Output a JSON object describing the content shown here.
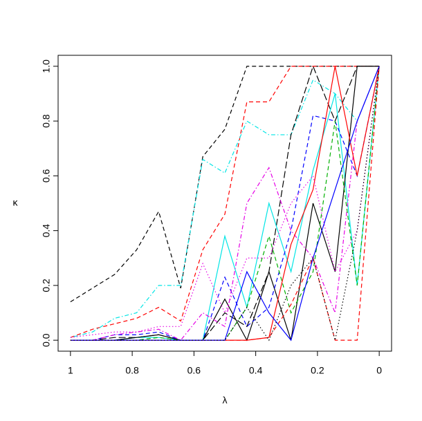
{
  "chart_data": {
    "type": "line",
    "x_label": "λ",
    "y_label": "κ",
    "x": [
      1,
      0.9286,
      0.8571,
      0.7857,
      0.7143,
      0.6429,
      0.5714,
      0.5,
      0.4286,
      0.3571,
      0.2857,
      0.2143,
      0.1429,
      0.0714,
      0
    ],
    "xlim": [
      1.04,
      -0.04
    ],
    "ylim": [
      -0.04,
      1.04
    ],
    "xticks": [
      1,
      0.8,
      0.6,
      0.4,
      0.2,
      0
    ],
    "yticks": [
      {
        "value": 0,
        "label": "0.0"
      },
      0.2,
      0.4,
      0.6,
      0.8,
      {
        "value": 1,
        "label": "1.0"
      }
    ],
    "series": [
      {
        "color": "#000000",
        "style": "dashed",
        "values": [
          0.14,
          0.19,
          0.24,
          0.33,
          0.47,
          0.19,
          0.67,
          0.77,
          1,
          1,
          1,
          1,
          1,
          1,
          1
        ]
      },
      {
        "color": "#ff0000",
        "style": "dashed",
        "values": [
          0.01,
          0.04,
          0.06,
          0.08,
          0.12,
          0.07,
          0.33,
          0.46,
          0.87,
          0.87,
          1,
          1,
          1,
          1,
          1
        ]
      },
      {
        "color": "#00e5e5",
        "style": "dotdash",
        "values": [
          0.01,
          0.03,
          0.08,
          0.1,
          0.2,
          0.2,
          0.66,
          0.61,
          0.8,
          0.75,
          0.75,
          0.95,
          0.9,
          0.8,
          1
        ]
      },
      {
        "color": "#000000",
        "style": "longdash",
        "values": [
          0,
          0,
          0.01,
          0.01,
          0.02,
          0,
          0,
          0.1,
          0.05,
          0.25,
          0.75,
          1,
          0.8,
          1,
          1
        ]
      },
      {
        "color": "#00e5e5",
        "style": "solid",
        "values": [
          0,
          0,
          0,
          0.01,
          0.01,
          0,
          0,
          0.38,
          0.12,
          0.5,
          0.25,
          0.62,
          0.9,
          0.2,
          1
        ]
      },
      {
        "color": "#000000",
        "style": "solid",
        "values": [
          0,
          0,
          0,
          0.01,
          0.02,
          0,
          0,
          0.15,
          0,
          0.25,
          0,
          0.5,
          0.25,
          1,
          1
        ]
      },
      {
        "color": "#0000ff",
        "style": "dashed",
        "values": [
          0,
          0,
          0.02,
          0.02,
          0.03,
          0,
          0,
          0.23,
          0.05,
          0.12,
          0.4,
          0.82,
          0.8,
          0.6,
          1
        ]
      },
      {
        "color": "#e500e5",
        "style": "dotdash",
        "values": [
          0,
          0,
          0.02,
          0.03,
          0.04,
          0,
          0.1,
          0.05,
          0.5,
          0.63,
          0.4,
          0.3,
          0.1,
          0.8,
          1
        ]
      },
      {
        "color": "#00b000",
        "style": "dashed",
        "values": [
          0,
          0,
          0,
          0,
          0.01,
          0,
          0,
          0,
          0.12,
          0.38,
          0.1,
          0.25,
          0.8,
          0.2,
          1
        ]
      },
      {
        "color": "#ff0000",
        "style": "solid",
        "values": [
          0,
          0,
          0,
          0,
          0,
          0,
          0,
          0,
          0,
          0.01,
          0.35,
          0.55,
          1,
          0.6,
          1
        ]
      },
      {
        "color": "#ff0000",
        "style": "dashed",
        "values": [
          0,
          0,
          0,
          0,
          0,
          0,
          0,
          0,
          0,
          0.01,
          0.13,
          0.3,
          0,
          0,
          1
        ]
      },
      {
        "color": "#e500e5",
        "style": "dotted",
        "values": [
          0.01,
          0.02,
          0.03,
          0.03,
          0.05,
          0.05,
          0.28,
          0.1,
          0.3,
          0.3,
          0.5,
          0.6,
          0.25,
          0.4,
          1
        ]
      },
      {
        "color": "#0000ff",
        "style": "solid",
        "values": [
          0,
          0,
          0,
          0,
          0,
          0,
          0,
          0,
          0.25,
          0.1,
          0,
          0.3,
          0.55,
          0.8,
          1
        ]
      },
      {
        "color": "#000000",
        "style": "dotted",
        "values": [
          0,
          0,
          0,
          0,
          0,
          0,
          0,
          0,
          0.12,
          0,
          0.2,
          0.3,
          0,
          0.4,
          1
        ]
      }
    ]
  }
}
